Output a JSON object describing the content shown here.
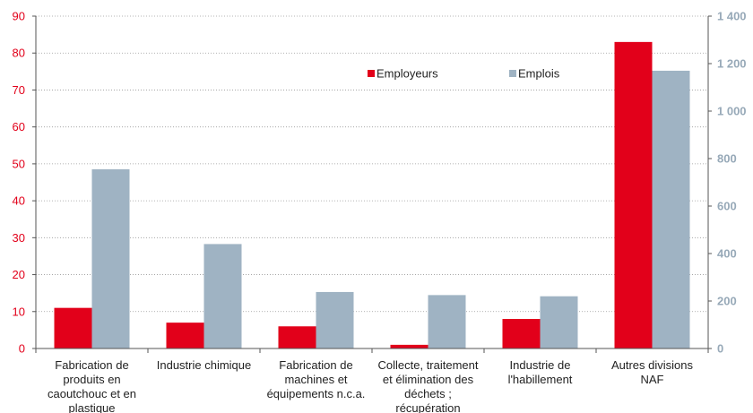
{
  "chart_data": {
    "type": "bar",
    "categories": [
      [
        "Fabrication de",
        "produits en",
        "caoutchouc et en",
        "plastique"
      ],
      [
        "Industrie chimique"
      ],
      [
        "Fabrication de",
        "machines et",
        "équipements n.c.a."
      ],
      [
        "Collecte, traitement",
        "et élimination des",
        "déchets ;",
        "récupération"
      ],
      [
        "Industrie de",
        "l'habillement"
      ],
      [
        "Autres divisions",
        "NAF"
      ]
    ],
    "series": [
      {
        "name": "Employeurs",
        "axis": "left",
        "color": "#e2001a",
        "values": [
          11,
          7,
          6,
          1,
          8,
          83
        ]
      },
      {
        "name": "Emplois",
        "axis": "right",
        "color": "#9fb3c3",
        "values": [
          755,
          440,
          238,
          225,
          220,
          1170
        ]
      }
    ],
    "y_left": {
      "min": 0,
      "max": 90,
      "step": 10,
      "ticks": [
        "0",
        "10",
        "20",
        "30",
        "40",
        "50",
        "60",
        "70",
        "80",
        "90"
      ]
    },
    "y_right": {
      "min": 0,
      "max": 1400,
      "step": 200,
      "ticks": [
        "0",
        "200",
        "400",
        "600",
        "800",
        "1 000",
        "1 200",
        "1 400"
      ]
    },
    "grid": true,
    "legend_position": "top-right-inside",
    "title": "",
    "xlabel": "",
    "ylabel": ""
  }
}
